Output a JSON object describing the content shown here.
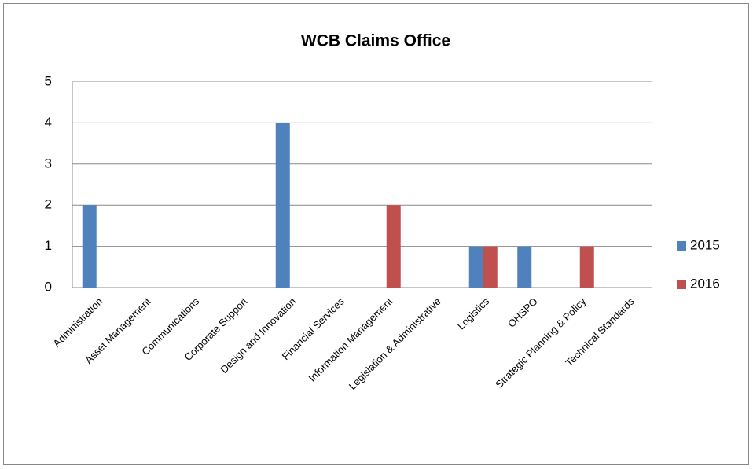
{
  "chart_data": {
    "type": "bar",
    "title": "WCB Claims Office",
    "categories": [
      "Administration",
      "Asset Management",
      "Communications",
      "Corporate Support",
      "Design and Innovation",
      "Financial Services",
      "Information Management",
      "Legislation & Administrative",
      "Logistics",
      "OHSPO",
      "Strategic Planning & Policy",
      "Technical Standards"
    ],
    "series": [
      {
        "name": "2015",
        "color": "#4f81bd",
        "values": [
          2,
          0,
          0,
          0,
          4,
          0,
          0,
          0,
          1,
          1,
          0,
          0
        ]
      },
      {
        "name": "2016",
        "color": "#c0504d",
        "values": [
          0,
          0,
          0,
          0,
          0,
          0,
          2,
          0,
          1,
          0,
          1,
          0
        ]
      }
    ],
    "ylim": [
      0,
      5
    ],
    "yticks": [
      0,
      1,
      2,
      3,
      4,
      5
    ],
    "grid": true,
    "legend": "right"
  }
}
